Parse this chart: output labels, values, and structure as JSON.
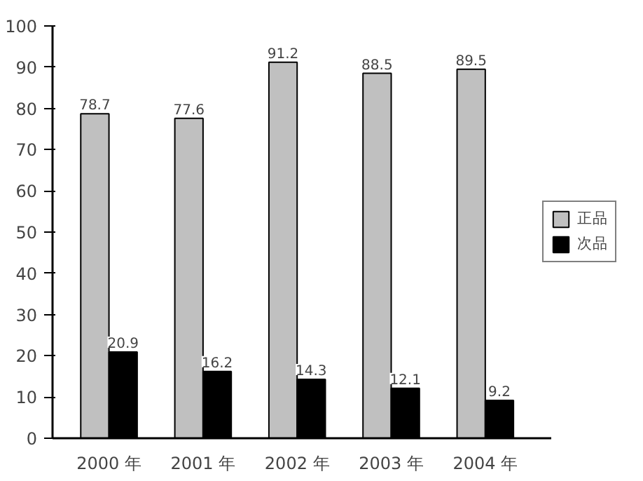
{
  "chart_data": {
    "type": "bar",
    "categories": [
      "2000 年",
      "2001 年",
      "2002 年",
      "2003 年",
      "2004 年"
    ],
    "series": [
      {
        "name": "正品",
        "color": "#c0c0c0",
        "values": [
          78.7,
          77.6,
          91.2,
          88.5,
          89.5
        ]
      },
      {
        "name": "次品",
        "color": "#000000",
        "values": [
          20.9,
          16.2,
          14.3,
          12.1,
          9.2
        ]
      }
    ],
    "ylim": [
      0,
      100
    ],
    "yticks": [
      0,
      10,
      20,
      30,
      40,
      50,
      60,
      70,
      80,
      90,
      100
    ],
    "data_labels": true,
    "grid": false,
    "legend": "right"
  }
}
